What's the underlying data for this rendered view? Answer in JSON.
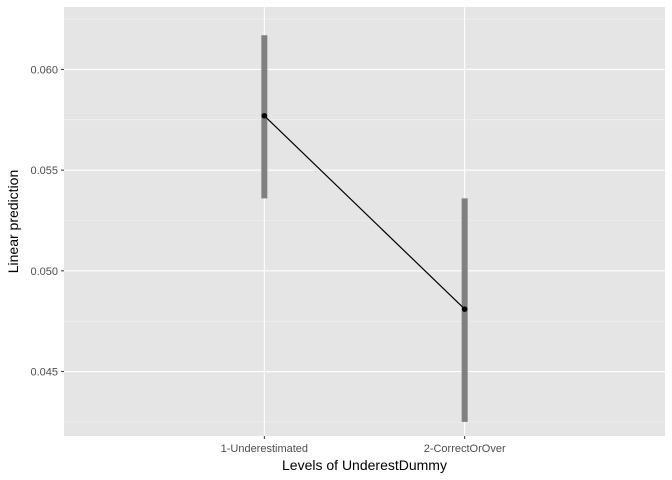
{
  "chart_data": {
    "type": "line",
    "title": "",
    "xlabel": "Levels of UnderestDummy",
    "ylabel": "Linear prediction",
    "categories": [
      "1-Underestimated",
      "2-CorrectOrOver"
    ],
    "series": [
      {
        "values": [
          0.0577,
          0.0481
        ],
        "ci_lower": [
          0.0536,
          0.0425
        ],
        "ci_upper": [
          0.0617,
          0.0536
        ]
      }
    ],
    "ylim": [
      0.0418,
      0.0631
    ],
    "yticks": [
      0.045,
      0.05,
      0.055,
      0.06
    ],
    "ytick_labels": [
      "0.045",
      "0.050",
      "0.055",
      "0.060"
    ],
    "grid": true,
    "legend": "none",
    "colors": {
      "panel_background": "#e5e5e5",
      "grid_major": "#ffffff",
      "grid_minor": "#f2f2f2",
      "error_bar": "#808080",
      "line": "#000000",
      "point": "#000000"
    }
  }
}
